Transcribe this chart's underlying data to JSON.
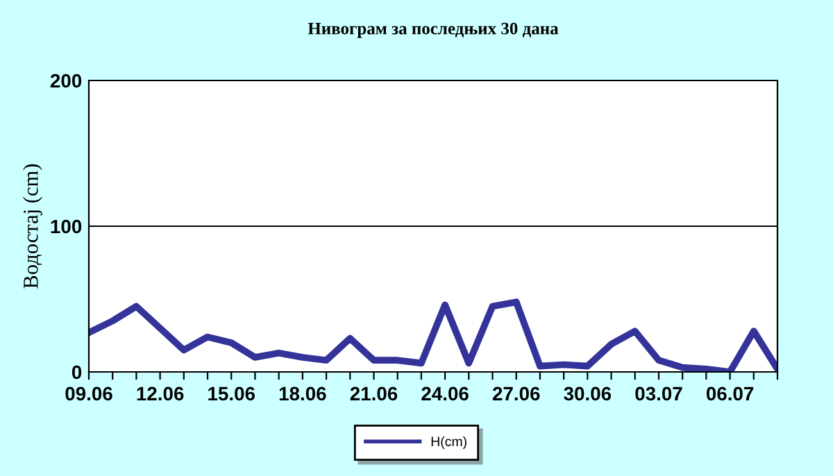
{
  "chart_data": {
    "type": "line",
    "title": "Нивограм за последњих 30 дана",
    "ylabel": "Водостај (cm)",
    "categories": [
      "09.06",
      null,
      null,
      "12.06",
      null,
      null,
      "15.06",
      null,
      null,
      "18.06",
      null,
      null,
      "21.06",
      null,
      null,
      "24.06",
      null,
      null,
      "27.06",
      null,
      null,
      "30.06",
      null,
      null,
      "03.07",
      null,
      null,
      "06.07",
      null,
      null
    ],
    "series": [
      {
        "name": "H(cm)",
        "color": "#333399",
        "values": [
          27,
          35,
          45,
          30,
          15,
          24,
          20,
          10,
          13,
          10,
          8,
          23,
          8,
          8,
          6,
          46,
          6,
          45,
          48,
          4,
          5,
          4,
          19,
          28,
          8,
          3,
          2,
          0,
          28,
          2
        ]
      }
    ],
    "ylim": [
      0,
      200
    ],
    "yticks": [
      0,
      100,
      200
    ],
    "grid": "y",
    "legend": "bottom",
    "marker": "none",
    "line_style": "solid"
  }
}
